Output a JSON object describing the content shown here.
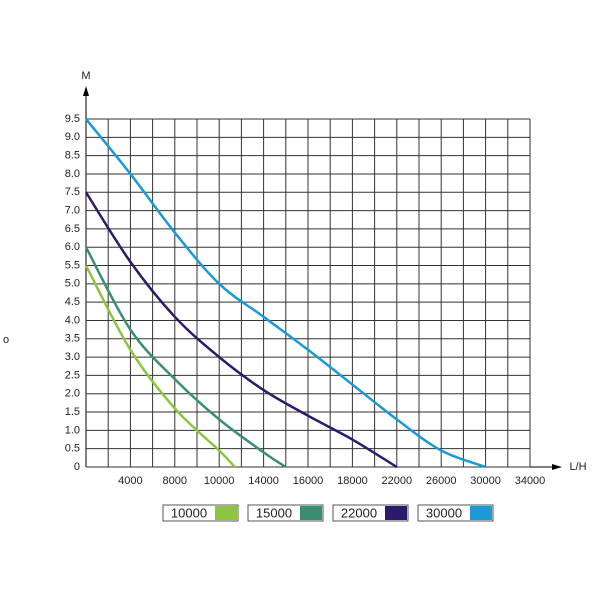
{
  "chart_data": {
    "type": "line",
    "y_axis_label": "M",
    "x_axis_label": "L/H",
    "annotation": "o",
    "xlim": [
      0,
      34000
    ],
    "ylim": [
      0,
      9.5
    ],
    "xticks": [
      4000,
      8000,
      10000,
      14000,
      16000,
      18000,
      22000,
      26000,
      30000,
      34000
    ],
    "yticks": [
      0,
      0.5,
      {
        "value": 1,
        "label": "1.0"
      },
      1.5,
      {
        "value": 2,
        "label": "2.0"
      },
      2.5,
      {
        "value": 3,
        "label": "3.0"
      },
      3.5,
      {
        "value": 4,
        "label": "4.0"
      },
      4.5,
      {
        "value": 5,
        "label": "5.0"
      },
      5.5,
      {
        "value": 6,
        "label": "6.0"
      },
      6.5,
      {
        "value": 7,
        "label": "7.0"
      },
      7.5,
      {
        "value": 8,
        "label": "8.0"
      },
      8.5,
      {
        "value": 9,
        "label": "9.0"
      },
      9.5
    ],
    "grid": true,
    "series": [
      {
        "name": "10000",
        "color": "#8cc63f",
        "x": [
          0,
          4000,
          8000,
          10000,
          11400
        ],
        "values": [
          5.5,
          3.2,
          1.6,
          0.45,
          0
        ]
      },
      {
        "name": "15000",
        "color": "#3a8f6e",
        "x": [
          0,
          4000,
          8000,
          10000,
          14000,
          15000
        ],
        "values": [
          6.0,
          3.75,
          2.4,
          1.3,
          0.4,
          0
        ]
      },
      {
        "name": "22000",
        "color": "#2e1a6b",
        "x": [
          0,
          4000,
          8000,
          10000,
          14000,
          16000,
          18000,
          22000
        ],
        "values": [
          7.5,
          5.6,
          4.1,
          3.0,
          2.1,
          1.4,
          0.75,
          0
        ]
      },
      {
        "name": "30000",
        "color": "#1a9ad6",
        "x": [
          0,
          4000,
          8000,
          10000,
          14000,
          16000,
          18000,
          22000,
          26000,
          30000
        ],
        "values": [
          9.5,
          8.0,
          6.4,
          5.0,
          4.1,
          3.2,
          2.25,
          1.3,
          0.45,
          0
        ]
      }
    ]
  }
}
